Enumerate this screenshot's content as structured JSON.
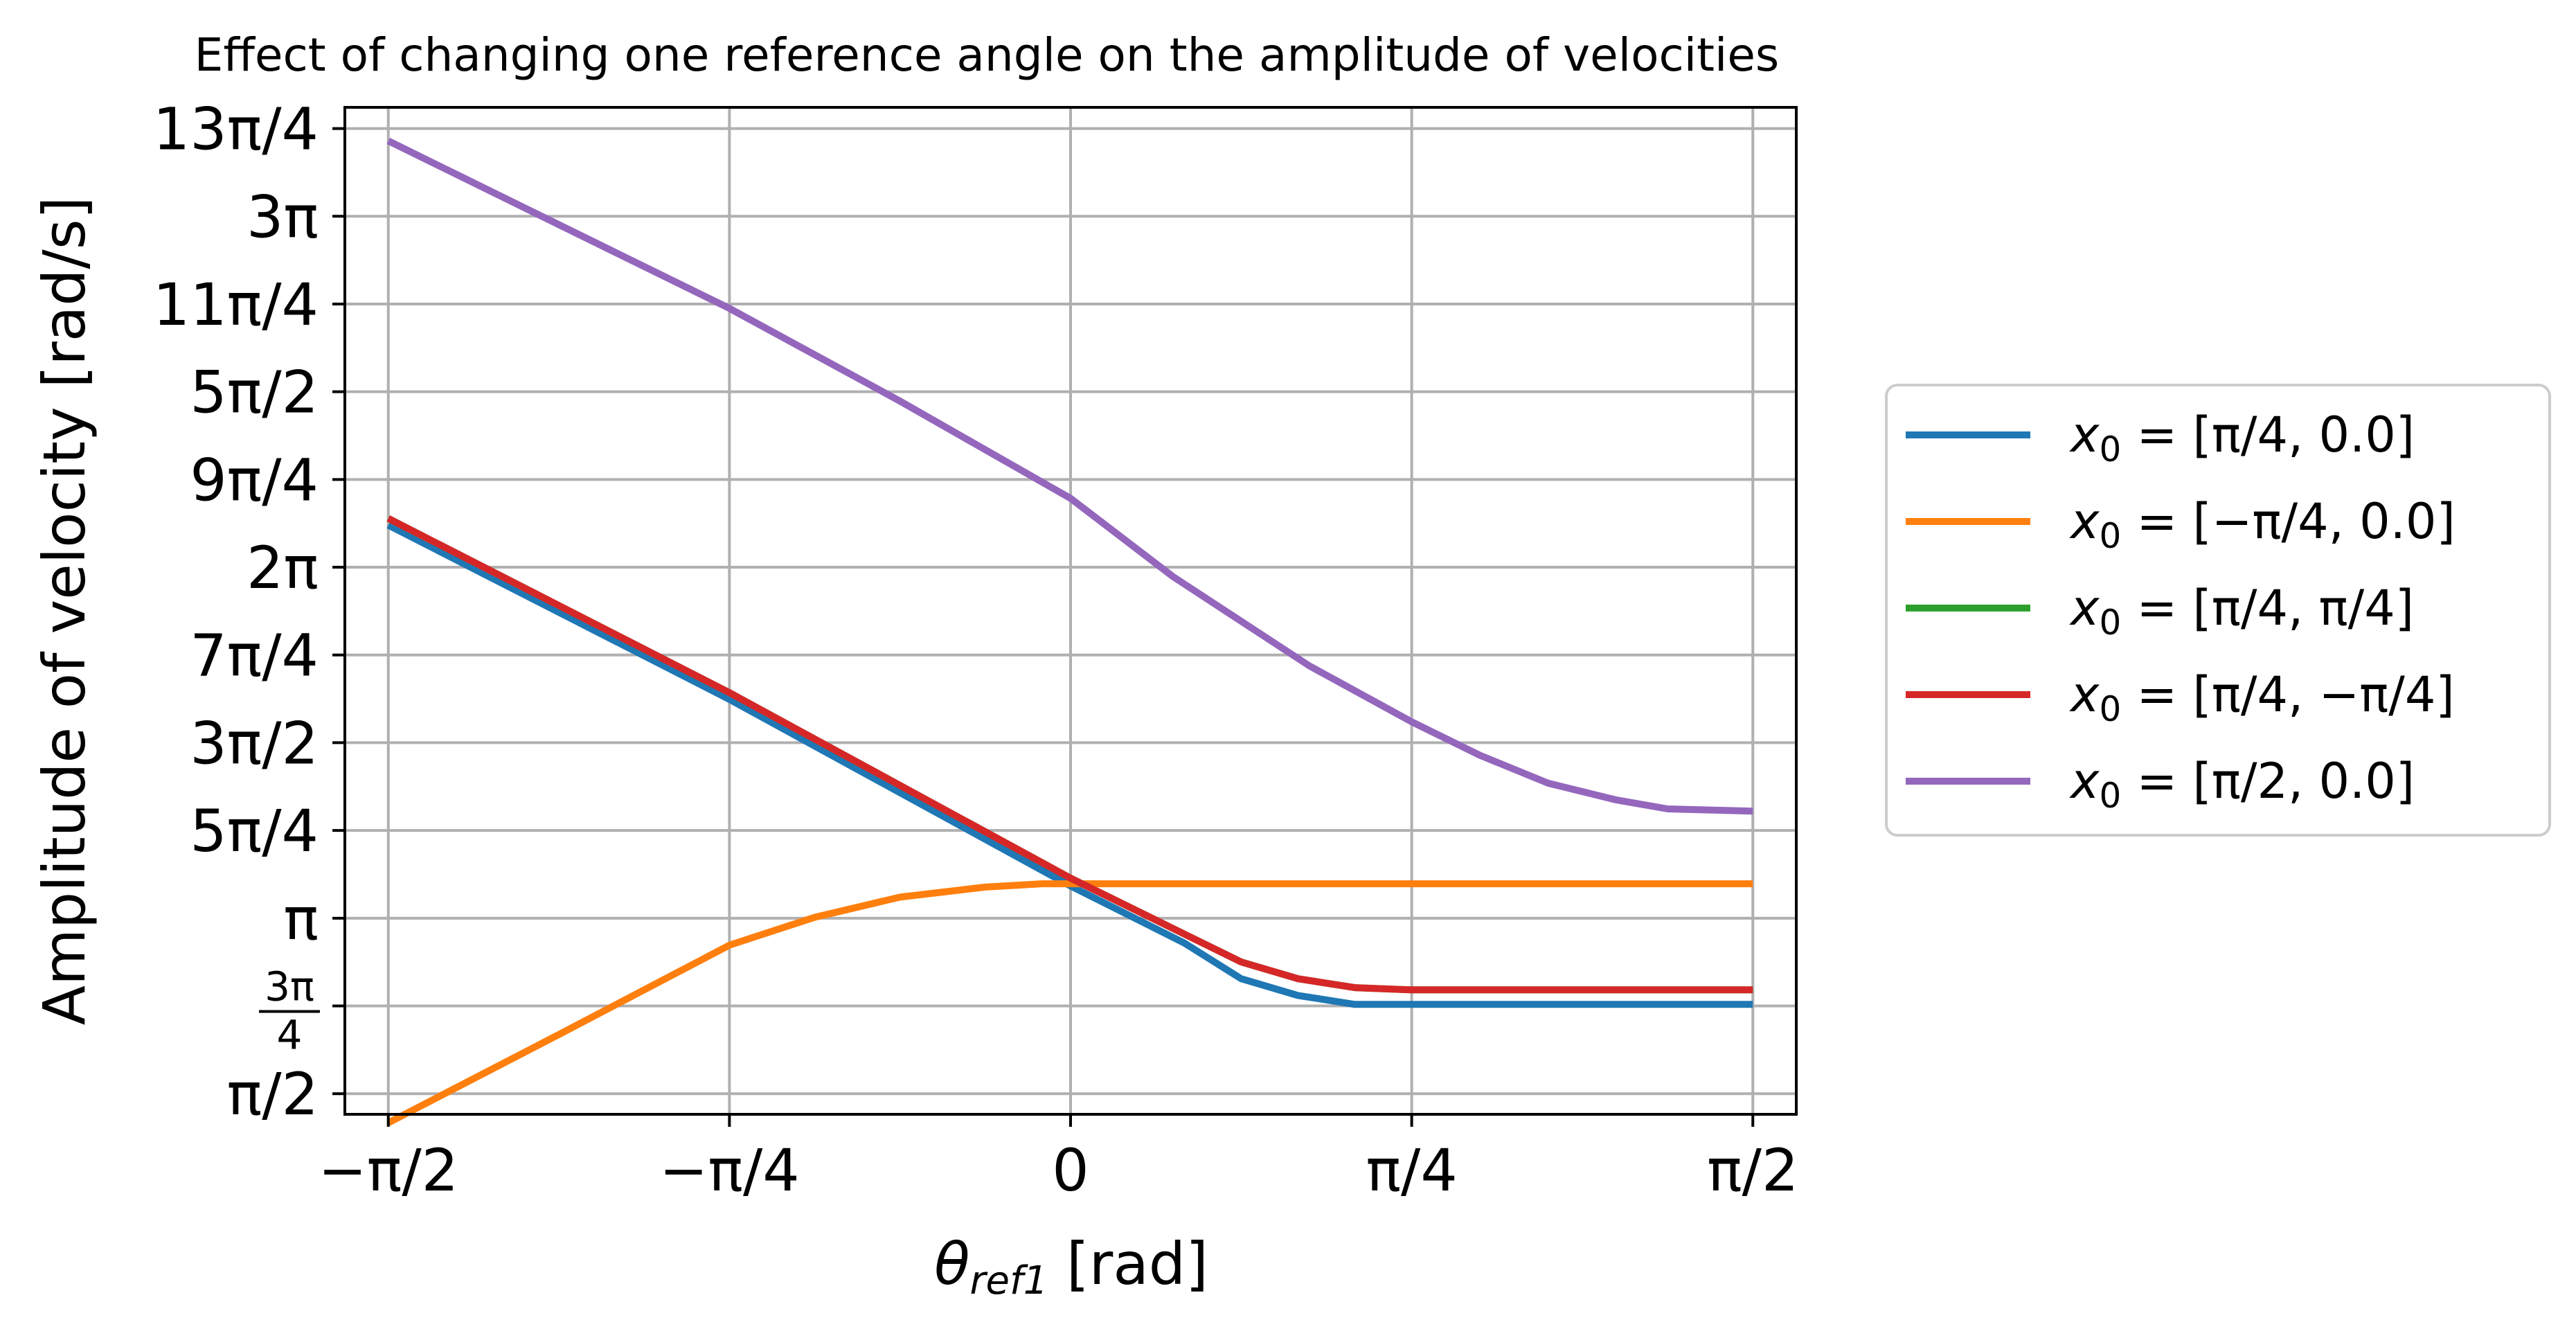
{
  "chart_data": {
    "type": "line",
    "title": "Effect of changing one reference angle on the amplitude of velocities",
    "xlabel": "θref1 [rad]",
    "xlabel_main": "θ",
    "xlabel_sub": "ref1",
    "xlabel_unit": " [rad]",
    "ylabel": "Amplitude of velocity [rad/s]",
    "xlim": [
      -1.6708,
      1.6708
    ],
    "ylim": [
      1.386,
      10.4
    ],
    "grid": true,
    "legend_position": "outside-right",
    "x_ticks": [
      {
        "value": -1.5708,
        "label": "−π/2"
      },
      {
        "value": -0.7854,
        "label": "−π/4"
      },
      {
        "value": 0,
        "label": "0"
      },
      {
        "value": 0.7854,
        "label": "π/4"
      },
      {
        "value": 1.5708,
        "label": "π/2"
      }
    ],
    "y_ticks": [
      {
        "value": 1.5708,
        "label": "π/2"
      },
      {
        "value": 2.3562,
        "label": "3π/4",
        "fraction": true,
        "num": "3π",
        "den": "4"
      },
      {
        "value": 3.1416,
        "label": "π"
      },
      {
        "value": 3.927,
        "label": "5π/4"
      },
      {
        "value": 4.7124,
        "label": "3π/2"
      },
      {
        "value": 5.4978,
        "label": "7π/4"
      },
      {
        "value": 6.2832,
        "label": "2π"
      },
      {
        "value": 7.0686,
        "label": "9π/4"
      },
      {
        "value": 7.854,
        "label": "5π/2"
      },
      {
        "value": 8.6394,
        "label": "11π/4"
      },
      {
        "value": 9.4248,
        "label": "3π"
      },
      {
        "value": 10.2102,
        "label": "13π/4"
      }
    ],
    "series": [
      {
        "name": "x0 = [π/4, 0.0]",
        "legend_base": "x",
        "legend_sub": "0",
        "legend_rest": " = [π/4, 0.0]",
        "color": "#1f77b4",
        "x": [
          -1.5708,
          -0.7854,
          0,
          0.2618,
          0.3927,
          0.5236,
          0.6545,
          0.7854,
          1.1781,
          1.5708
        ],
        "y": [
          6.66,
          5.1,
          3.43,
          2.92,
          2.6,
          2.45,
          2.37,
          2.37,
          2.37,
          2.37
        ]
      },
      {
        "name": "x0 = [−π/4, 0.0]",
        "legend_base": "x",
        "legend_sub": "0",
        "legend_rest": " = [−π/4, 0.0]",
        "color": "#ff7f0e",
        "x": [
          -1.5708,
          -1.1781,
          -0.7854,
          -0.5891,
          -0.3927,
          -0.1963,
          -0.0654,
          0,
          0.3927,
          0.7854,
          1.1781,
          1.5708
        ],
        "y": [
          1.31,
          2.1,
          2.9,
          3.15,
          3.33,
          3.42,
          3.45,
          3.45,
          3.45,
          3.45,
          3.45,
          3.45
        ]
      },
      {
        "name": "x0 = [π/4, π/4]",
        "legend_base": "x",
        "legend_sub": "0",
        "legend_rest": " = [π/4, π/4]",
        "color": "#2ca02c",
        "x": [
          -1.5708,
          -0.7854,
          0,
          0.2618,
          0.3927,
          0.5236,
          0.6545,
          0.7854,
          1.1781,
          1.5708
        ],
        "y": [
          6.72,
          5.16,
          3.5,
          3.0,
          2.75,
          2.6,
          2.52,
          2.5,
          2.5,
          2.5
        ]
      },
      {
        "name": "x0 = [π/4, −π/4]",
        "legend_base": "x",
        "legend_sub": "0",
        "legend_rest": " = [π/4, −π/4]",
        "color": "#d62728",
        "x": [
          -1.5708,
          -0.7854,
          0,
          0.2618,
          0.3927,
          0.5236,
          0.6545,
          0.7854,
          1.1781,
          1.5708
        ],
        "y": [
          6.72,
          5.16,
          3.5,
          3.0,
          2.75,
          2.6,
          2.52,
          2.5,
          2.5,
          2.5
        ]
      },
      {
        "name": "x0 = [π/2, 0.0]",
        "legend_base": "x",
        "legend_sub": "0",
        "legend_rest": " = [π/2, 0.0]",
        "color": "#9467bd",
        "x": [
          -1.5708,
          -1.1781,
          -0.7854,
          -0.3927,
          0,
          0.2356,
          0.3927,
          0.5498,
          0.7854,
          0.9425,
          1.0996,
          1.2566,
          1.3744,
          1.5708
        ],
        "y": [
          10.1,
          9.35,
          8.6,
          7.77,
          6.9,
          6.2,
          5.8,
          5.4,
          4.9,
          4.6,
          4.35,
          4.2,
          4.12,
          4.1
        ]
      }
    ]
  }
}
